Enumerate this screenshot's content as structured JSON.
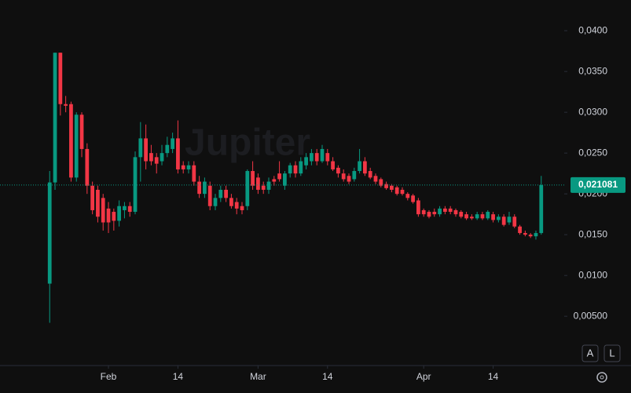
{
  "chart_data": {
    "type": "candlestick",
    "watermark": "Jupiter",
    "x": [
      0,
      1,
      2,
      3,
      4,
      5,
      6,
      7,
      8,
      9,
      10,
      11,
      12,
      13,
      14,
      15,
      16,
      17,
      18,
      19,
      20,
      21,
      22,
      23,
      24,
      25,
      26,
      27,
      28,
      29,
      30,
      31,
      32,
      33,
      34,
      35,
      36,
      37,
      38,
      39,
      40,
      41,
      42,
      43,
      44,
      45,
      46,
      47,
      48,
      49,
      50,
      51,
      52,
      53,
      54,
      55,
      56,
      57,
      58,
      59,
      60,
      61,
      62,
      63,
      64,
      65,
      66,
      67,
      68,
      69,
      70,
      71,
      72,
      73,
      74,
      75,
      76,
      77,
      78,
      79,
      80,
      81,
      82,
      83,
      84,
      85,
      86,
      87,
      88,
      89,
      90,
      91,
      92
    ],
    "open": [
      0.009,
      0.0214,
      0.0373,
      0.031,
      0.031,
      0.022,
      0.0297,
      0.0255,
      0.021,
      0.0205,
      0.0195,
      0.0182,
      0.0178,
      0.0167,
      0.018,
      0.0185,
      0.0178,
      0.0245,
      0.0268,
      0.025,
      0.0245,
      0.024,
      0.025,
      0.0255,
      0.0268,
      0.0235,
      0.023,
      0.0235,
      0.0215,
      0.02,
      0.021,
      0.0185,
      0.0195,
      0.0205,
      0.0195,
      0.019,
      0.0185,
      0.0185,
      0.0228,
      0.022,
      0.021,
      0.0205,
      0.0218,
      0.0225,
      0.021,
      0.0225,
      0.0235,
      0.0225,
      0.0235,
      0.024,
      0.025,
      0.024,
      0.025,
      0.024,
      0.0232,
      0.0225,
      0.0222,
      0.0218,
      0.0228,
      0.024,
      0.0228,
      0.0222,
      0.0218,
      0.0212,
      0.021,
      0.0208,
      0.0205,
      0.02,
      0.0198,
      0.0192,
      0.018,
      0.0178,
      0.0178,
      0.0175,
      0.0182,
      0.0182,
      0.018,
      0.0178,
      0.0175,
      0.0172,
      0.017,
      0.0175,
      0.017,
      0.0175,
      0.0168,
      0.0172,
      0.0165,
      0.0172,
      0.016,
      0.0152,
      0.015,
      0.0148,
      0.0152
    ],
    "high": [
      0.0228,
      0.0373,
      0.0373,
      0.032,
      0.0313,
      0.03,
      0.03,
      0.0262,
      0.0215,
      0.021,
      0.02,
      0.019,
      0.0182,
      0.0192,
      0.019,
      0.019,
      0.0252,
      0.0288,
      0.0285,
      0.026,
      0.025,
      0.026,
      0.027,
      0.0275,
      0.029,
      0.024,
      0.024,
      0.024,
      0.0222,
      0.022,
      0.0215,
      0.02,
      0.021,
      0.021,
      0.02,
      0.0195,
      0.019,
      0.023,
      0.024,
      0.0225,
      0.0215,
      0.022,
      0.0222,
      0.024,
      0.0228,
      0.0238,
      0.024,
      0.0245,
      0.025,
      0.0255,
      0.0255,
      0.026,
      0.0255,
      0.0245,
      0.0235,
      0.023,
      0.0225,
      0.0232,
      0.0255,
      0.0245,
      0.0232,
      0.0225,
      0.022,
      0.0215,
      0.0212,
      0.021,
      0.0208,
      0.0202,
      0.02,
      0.0195,
      0.0182,
      0.018,
      0.0182,
      0.0185,
      0.0185,
      0.0185,
      0.0182,
      0.018,
      0.0178,
      0.0175,
      0.0178,
      0.0178,
      0.018,
      0.0178,
      0.0175,
      0.0175,
      0.0178,
      0.0175,
      0.0162,
      0.0155,
      0.0152,
      0.0155,
      0.0222
    ],
    "low": [
      0.0042,
      0.0205,
      0.0296,
      0.03,
      0.0215,
      0.0215,
      0.0245,
      0.02,
      0.0175,
      0.0165,
      0.0155,
      0.0152,
      0.0155,
      0.016,
      0.017,
      0.0172,
      0.0175,
      0.0215,
      0.023,
      0.0235,
      0.0225,
      0.0235,
      0.0245,
      0.025,
      0.0225,
      0.0225,
      0.0225,
      0.021,
      0.0195,
      0.0195,
      0.018,
      0.018,
      0.019,
      0.019,
      0.0182,
      0.0175,
      0.0175,
      0.018,
      0.0205,
      0.02,
      0.02,
      0.02,
      0.021,
      0.0215,
      0.0205,
      0.022,
      0.022,
      0.0222,
      0.023,
      0.0235,
      0.0235,
      0.0238,
      0.0235,
      0.0228,
      0.022,
      0.0215,
      0.0212,
      0.0215,
      0.0225,
      0.0222,
      0.0218,
      0.0212,
      0.0208,
      0.0205,
      0.0202,
      0.0198,
      0.0198,
      0.0192,
      0.0188,
      0.0172,
      0.0172,
      0.017,
      0.0172,
      0.0172,
      0.0175,
      0.0175,
      0.0172,
      0.017,
      0.0168,
      0.0168,
      0.0168,
      0.0168,
      0.0168,
      0.0165,
      0.0165,
      0.016,
      0.0162,
      0.0158,
      0.015,
      0.0148,
      0.0146,
      0.0144,
      0.015
    ],
    "close": [
      0.0214,
      0.0373,
      0.031,
      0.0308,
      0.022,
      0.0297,
      0.0255,
      0.021,
      0.018,
      0.0172,
      0.0165,
      0.0165,
      0.0167,
      0.0185,
      0.0185,
      0.0178,
      0.0245,
      0.0268,
      0.024,
      0.024,
      0.0237,
      0.025,
      0.026,
      0.0268,
      0.023,
      0.023,
      0.0235,
      0.0215,
      0.02,
      0.0215,
      0.0185,
      0.0195,
      0.0205,
      0.0195,
      0.0185,
      0.0182,
      0.018,
      0.0228,
      0.021,
      0.0205,
      0.0205,
      0.0215,
      0.0215,
      0.0218,
      0.0225,
      0.0235,
      0.0225,
      0.024,
      0.0245,
      0.025,
      0.024,
      0.0255,
      0.024,
      0.023,
      0.0225,
      0.0218,
      0.0215,
      0.0228,
      0.024,
      0.0225,
      0.022,
      0.0215,
      0.021,
      0.0207,
      0.0205,
      0.02,
      0.02,
      0.0195,
      0.019,
      0.0175,
      0.0175,
      0.0172,
      0.0175,
      0.0182,
      0.0178,
      0.0178,
      0.0175,
      0.0172,
      0.017,
      0.017,
      0.0175,
      0.017,
      0.0178,
      0.0168,
      0.0172,
      0.0162,
      0.0172,
      0.016,
      0.0152,
      0.015,
      0.0148,
      0.0152,
      0.02108
    ],
    "up_color": "#089981",
    "down_color": "#f23645",
    "xlim": [
      -9.3,
      96.3
    ],
    "xticks": [
      {
        "value": 11,
        "label": "Feb"
      },
      {
        "value": 24,
        "label": "14"
      },
      {
        "value": 39,
        "label": "Mar"
      },
      {
        "value": 52,
        "label": "14"
      },
      {
        "value": 70,
        "label": "Apr"
      },
      {
        "value": 83,
        "label": "14"
      }
    ],
    "ylim": [
      -0.00104,
      0.04376
    ],
    "yticks": [
      {
        "value": 0.005,
        "label": "0,00500"
      },
      {
        "value": 0.01,
        "label": "0,0100"
      },
      {
        "value": 0.015,
        "label": "0,0150"
      },
      {
        "value": 0.02,
        "label": "0,0200"
      },
      {
        "value": 0.025,
        "label": "0,0250"
      },
      {
        "value": 0.03,
        "label": "0,0300"
      },
      {
        "value": 0.035,
        "label": "0,0350"
      },
      {
        "value": 0.04,
        "label": "0,0400"
      }
    ],
    "last_price": {
      "value": 0.021081,
      "label": "0,021081"
    },
    "buttons": [
      "A",
      "L"
    ]
  }
}
